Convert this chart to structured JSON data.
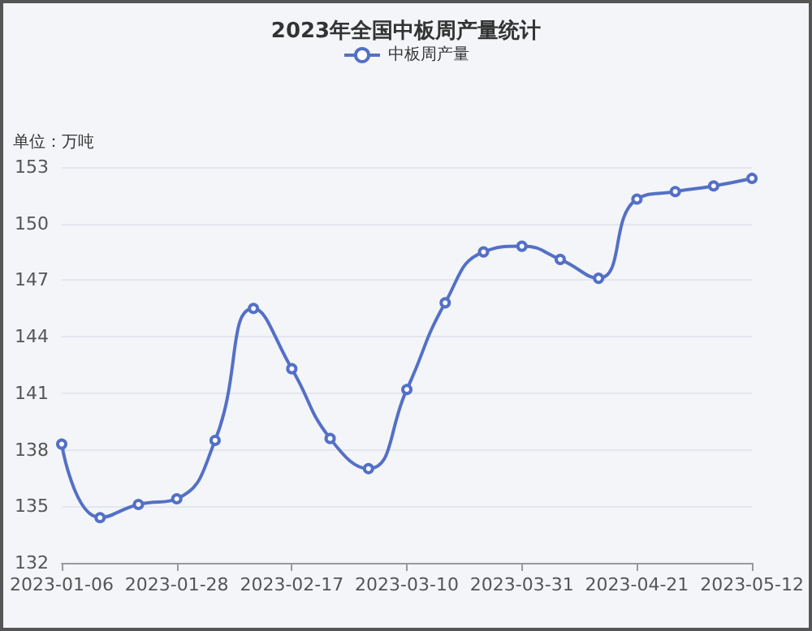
{
  "chart_data": {
    "type": "line",
    "title": "2023年全国中板周产量统计",
    "ylabel": "单位：万吨",
    "categories": [
      "2023-01-06",
      null,
      null,
      "2023-01-28",
      null,
      null,
      "2023-02-17",
      null,
      null,
      "2023-03-10",
      null,
      null,
      "2023-03-31",
      null,
      null,
      "2023-04-21",
      null,
      null,
      "2023-05-12"
    ],
    "series": [
      {
        "name": "中板周产量",
        "color": "#5470c6",
        "values": [
          138.3,
          134.4,
          135.1,
          135.4,
          138.5,
          145.5,
          142.3,
          138.6,
          137.0,
          141.2,
          145.8,
          148.5,
          148.8,
          148.1,
          147.1,
          151.3,
          151.7,
          152.0,
          152.4
        ]
      }
    ],
    "ylim": [
      132,
      153
    ],
    "yticks": [
      132,
      135,
      138,
      141,
      144,
      147,
      150,
      153
    ],
    "grid": "y",
    "legend": "top",
    "marker": "circle",
    "line_style": "solid"
  }
}
